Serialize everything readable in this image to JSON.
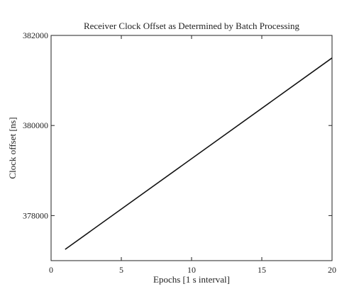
{
  "chart_data": {
    "type": "line",
    "title": "Receiver Clock Offset as Determined by Batch Processing",
    "xlabel": "Epochs [1 s interval]",
    "ylabel": "Clock offset [ns]",
    "xlim": [
      0,
      20
    ],
    "ylim": [
      377000,
      382000
    ],
    "x_ticks": [
      0,
      5,
      10,
      15,
      20
    ],
    "y_ticks": [
      378000,
      380000,
      382000
    ],
    "x_tick_labels": [
      "0",
      "5",
      "10",
      "15",
      "20"
    ],
    "y_tick_labels": [
      "378000",
      "380000",
      "382000"
    ],
    "grid": false,
    "series": [
      {
        "color": "#111111",
        "x": [
          1,
          20
        ],
        "y": [
          377250,
          381500
        ]
      }
    ]
  }
}
